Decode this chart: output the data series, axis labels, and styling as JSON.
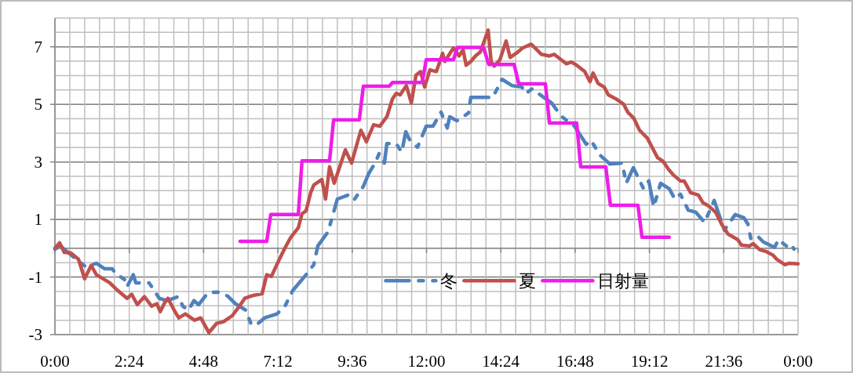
{
  "chart_data": {
    "type": "line",
    "xlim": [
      0,
      24
    ],
    "ylim": [
      -3,
      8
    ],
    "xticks": [
      {
        "value": 0,
        "label": "0:00"
      },
      {
        "value": 2.4,
        "label": "2:24"
      },
      {
        "value": 4.8,
        "label": "4:48"
      },
      {
        "value": 7.2,
        "label": "7:12"
      },
      {
        "value": 9.6,
        "label": "9:36"
      },
      {
        "value": 12,
        "label": "12:00"
      },
      {
        "value": 14.4,
        "label": "14:24"
      },
      {
        "value": 16.8,
        "label": "16:48"
      },
      {
        "value": 19.2,
        "label": "19:12"
      },
      {
        "value": 21.6,
        "label": "21:36"
      },
      {
        "value": 24,
        "label": "0:00"
      }
    ],
    "yticks": [
      -3,
      -1,
      1,
      3,
      5,
      7
    ],
    "grid": true,
    "legend": "bottom",
    "line_style": "solid",
    "series": [
      {
        "name": "冬",
        "color": "#4f81bd",
        "line_style": "dashed",
        "x": [
          0,
          0.18,
          0.68,
          1.01,
          1.34,
          1.6,
          1.85,
          1.95,
          2.28,
          2.33,
          2.53,
          2.61,
          3.04,
          3.37,
          3.62,
          3.98,
          4.13,
          4.31,
          4.49,
          4.64,
          4.94,
          5.25,
          5.58,
          5.83,
          6.16,
          6.34,
          6.51,
          6.77,
          7.17,
          7.43,
          7.68,
          8.11,
          8.36,
          8.49,
          8.82,
          9.12,
          9.55,
          9.68,
          9.96,
          10.14,
          10.34,
          10.47,
          10.64,
          10.72,
          11.02,
          11.2,
          11.33,
          11.45,
          11.71,
          11.99,
          12.21,
          12.47,
          12.67,
          12.75,
          12.98,
          13.36,
          13.43,
          13.68,
          14.14,
          14.44,
          14.77,
          15.08,
          15.21,
          15.41,
          15.79,
          16.04,
          16.35,
          16.78,
          17.16,
          17.31,
          17.61,
          17.92,
          18.32,
          18.45,
          18.68,
          19.01,
          19.18,
          19.34,
          19.56,
          19.84,
          20.02,
          20.2,
          20.45,
          20.7,
          20.98,
          21.29,
          21.62,
          21.97,
          22.25,
          22.38,
          22.48,
          22.73,
          22.88,
          23.24,
          23.37,
          23.62,
          23.75,
          23.87
        ],
        "values": [
          -0.03,
          0.08,
          -0.38,
          -0.65,
          -0.52,
          -0.71,
          -0.71,
          -0.87,
          -1.11,
          -1.33,
          -0.92,
          -1.2,
          -1.2,
          -1.74,
          -1.82,
          -1.68,
          -2.01,
          -2.15,
          -1.82,
          -1.96,
          -1.55,
          -1.52,
          -1.66,
          -1.93,
          -2.15,
          -2.64,
          -2.66,
          -2.42,
          -2.28,
          -2.01,
          -1.47,
          -0.92,
          -0.57,
          0.08,
          0.57,
          1.71,
          1.88,
          1.71,
          2.15,
          2.61,
          2.96,
          3.29,
          2.96,
          3.64,
          3.64,
          3.34,
          4.05,
          3.78,
          3.51,
          4.24,
          4.24,
          4.73,
          4.18,
          4.57,
          4.43,
          4.7,
          5.24,
          5.24,
          5.24,
          5.87,
          5.65,
          5.6,
          5.38,
          5.54,
          5.24,
          5.05,
          4.59,
          4.24,
          3.61,
          3.75,
          3.23,
          2.93,
          2.96,
          2.26,
          2.8,
          2.07,
          2.34,
          1.44,
          2.26,
          2.07,
          1.71,
          1.88,
          1.33,
          1.25,
          0.9,
          1.66,
          0.63,
          1.17,
          1.06,
          0.84,
          0.3,
          0.38,
          0.22,
          0.03,
          0.3,
          0.08,
          0.16,
          -0.03
        ]
      },
      {
        "name": "夏",
        "color": "#c0504d",
        "x": [
          0,
          0.15,
          0.3,
          0.51,
          0.76,
          0.96,
          1.17,
          1.34,
          1.77,
          2.03,
          2.33,
          2.48,
          2.66,
          2.89,
          3.12,
          3.29,
          3.4,
          3.55,
          3.65,
          3.85,
          4,
          4.21,
          4.51,
          4.71,
          4.97,
          5.22,
          5.45,
          5.73,
          5.96,
          6.13,
          6.28,
          6.44,
          6.69,
          6.84,
          6.99,
          7.25,
          7.4,
          7.6,
          7.86,
          7.98,
          8.11,
          8.26,
          8.36,
          8.62,
          8.74,
          8.87,
          9.02,
          9.38,
          9.58,
          9.88,
          10.06,
          10.29,
          10.49,
          10.72,
          10.9,
          11.02,
          11.15,
          11.35,
          11.51,
          11.66,
          11.81,
          11.94,
          12.11,
          12.32,
          12.52,
          12.59,
          12.87,
          13.05,
          13.18,
          13.28,
          13.43,
          13.58,
          13.74,
          13.99,
          14.09,
          14.19,
          14.37,
          14.57,
          14.7,
          14.95,
          15.1,
          15.38,
          15.56,
          15.71,
          15.97,
          16.12,
          16.35,
          16.52,
          16.68,
          16.85,
          17.11,
          17.28,
          17.38,
          17.54,
          17.74,
          17.87,
          18.12,
          18.37,
          18.5,
          18.7,
          18.88,
          19.13,
          19.26,
          19.46,
          19.64,
          19.82,
          19.97,
          20.2,
          20.32,
          20.53,
          20.78,
          20.93,
          21.11,
          21.34,
          21.54,
          21.74,
          22.05,
          22.17,
          22.43,
          22.55,
          22.76,
          22.96,
          23.19,
          23.31,
          23.57,
          23.72,
          24
        ],
        "values": [
          0,
          0.19,
          -0.14,
          -0.16,
          -0.38,
          -1.06,
          -0.6,
          -0.92,
          -1.2,
          -1.47,
          -1.74,
          -1.6,
          -1.96,
          -1.68,
          -2.01,
          -1.93,
          -2.2,
          -1.88,
          -1.74,
          -2.15,
          -2.42,
          -2.28,
          -2.5,
          -2.42,
          -2.93,
          -2.61,
          -2.55,
          -2.34,
          -2.01,
          -1.74,
          -1.68,
          -1.63,
          -1.58,
          -0.92,
          -0.98,
          -0.38,
          -0.05,
          0.35,
          0.71,
          1.2,
          1.3,
          1.93,
          2.2,
          2.39,
          1.71,
          2.83,
          2.26,
          3.42,
          2.96,
          4.1,
          3.7,
          4.29,
          4.24,
          4.57,
          5.19,
          5.38,
          5.33,
          5.65,
          5.05,
          6.01,
          6.14,
          5.6,
          6.2,
          6.14,
          6.77,
          6.49,
          6.96,
          6.68,
          6.9,
          6.36,
          6.49,
          6.68,
          6.82,
          7.58,
          6.47,
          6.33,
          6.55,
          7.2,
          6.63,
          6.82,
          6.96,
          7.09,
          6.9,
          6.74,
          6.68,
          6.74,
          6.55,
          6.41,
          6.47,
          6.36,
          6.14,
          5.79,
          6.09,
          5.73,
          5.6,
          5.33,
          5.19,
          5,
          4.73,
          4.51,
          4.1,
          3.83,
          3.56,
          3.15,
          3.02,
          2.74,
          2.55,
          2.34,
          2.34,
          1.93,
          1.85,
          1.58,
          1.47,
          1.25,
          0.82,
          0.49,
          0.3,
          0.11,
          0.08,
          0.16,
          -0.05,
          -0.11,
          -0.24,
          -0.38,
          -0.57,
          -0.52,
          -0.54
        ]
      },
      {
        "name": "日射量",
        "color": "#ee1de9",
        "x": [
          5.98,
          6.84,
          6.97,
          7.86,
          7.98,
          8.87,
          9,
          9.83,
          9.96,
          10.8,
          10.9,
          11.86,
          11.99,
          12.87,
          13,
          13.84,
          14.01,
          14.83,
          14.98,
          15.84,
          15.97,
          16.85,
          16.98,
          17.79,
          17.94,
          18.83,
          18.96,
          19.84
        ],
        "values": [
          0.24,
          0.24,
          1.17,
          1.17,
          3.04,
          3.04,
          4.46,
          4.46,
          5.63,
          5.63,
          5.76,
          5.76,
          6.55,
          6.55,
          6.98,
          6.98,
          6.39,
          6.39,
          5.71,
          5.71,
          4.35,
          4.35,
          2.83,
          2.83,
          1.49,
          1.49,
          0.38,
          0.38
        ]
      }
    ]
  }
}
